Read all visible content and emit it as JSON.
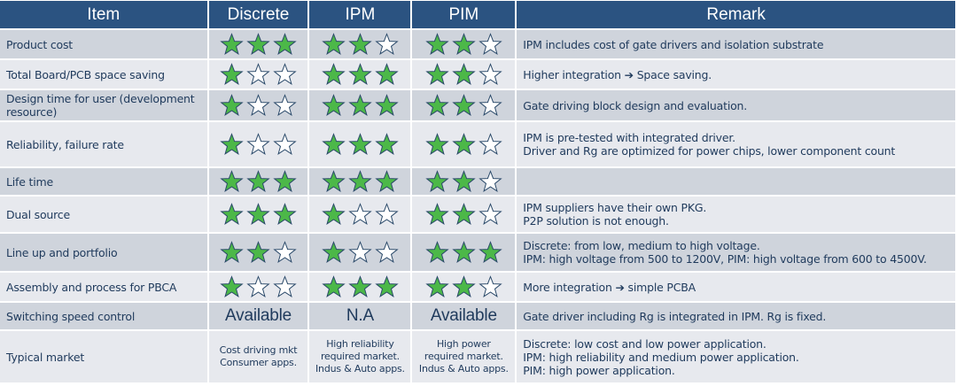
{
  "headers": [
    "Item",
    "Discrete",
    "IPM",
    "PIM",
    "Remark"
  ],
  "colors": {
    "header": "#2b5381",
    "star_filled": "#4cb848",
    "star_outline": "#2b4a6a",
    "row_odd": "#cfd4dc",
    "row_even": "#e7e9ee"
  },
  "rows": [
    {
      "item": "Product cost",
      "ratings": [
        3,
        2,
        2
      ],
      "remark": [
        "IPM includes cost of gate drivers and isolation substrate"
      ]
    },
    {
      "item": "Total Board/PCB space saving",
      "ratings": [
        1,
        3,
        2
      ],
      "remark": [
        "Higher integration ➔ Space saving."
      ]
    },
    {
      "item": "Design time for user (development resource)",
      "ratings": [
        1,
        3,
        2
      ],
      "remark": [
        "Gate driving block design and evaluation."
      ]
    },
    {
      "item": "Reliability, failure rate",
      "ratings": [
        1,
        3,
        2
      ],
      "remark": [
        "IPM is pre-tested with integrated driver.",
        "Driver and Rg are optimized for power chips, lower component count"
      ]
    },
    {
      "item": "Life time",
      "ratings": [
        3,
        3,
        2
      ],
      "remark": []
    },
    {
      "item": "Dual source",
      "ratings": [
        3,
        1,
        2
      ],
      "remark": [
        "IPM suppliers have their own PKG.",
        "P2P solution is not enough."
      ]
    },
    {
      "item": "Line up and portfolio",
      "ratings": [
        2,
        1,
        3
      ],
      "remark": [
        "Discrete: from low, medium to high voltage.",
        "IPM: high voltage from 500 to 1200V, PIM: high voltage from 600 to 4500V."
      ]
    },
    {
      "item": "Assembly and process for PBCA",
      "ratings": [
        1,
        3,
        2
      ],
      "remark": [
        "More integration ➔ simple PCBA"
      ]
    },
    {
      "item": "Switching speed control",
      "values": [
        "Available",
        "N.A",
        "Available"
      ],
      "remark": [
        "Gate driver including Rg is integrated in IPM.  Rg is fixed."
      ]
    },
    {
      "item": "Typical market",
      "values_small": [
        [
          "Cost driving mkt",
          "Consumer apps."
        ],
        [
          "High reliability",
          "required market.",
          "Indus & Auto apps."
        ],
        [
          "High power",
          "required market.",
          "Indus & Auto apps."
        ]
      ],
      "remark": [
        "Discrete: low cost and low power application.",
        "IPM: high reliability and medium power application.",
        "PIM: high power application."
      ]
    }
  ]
}
